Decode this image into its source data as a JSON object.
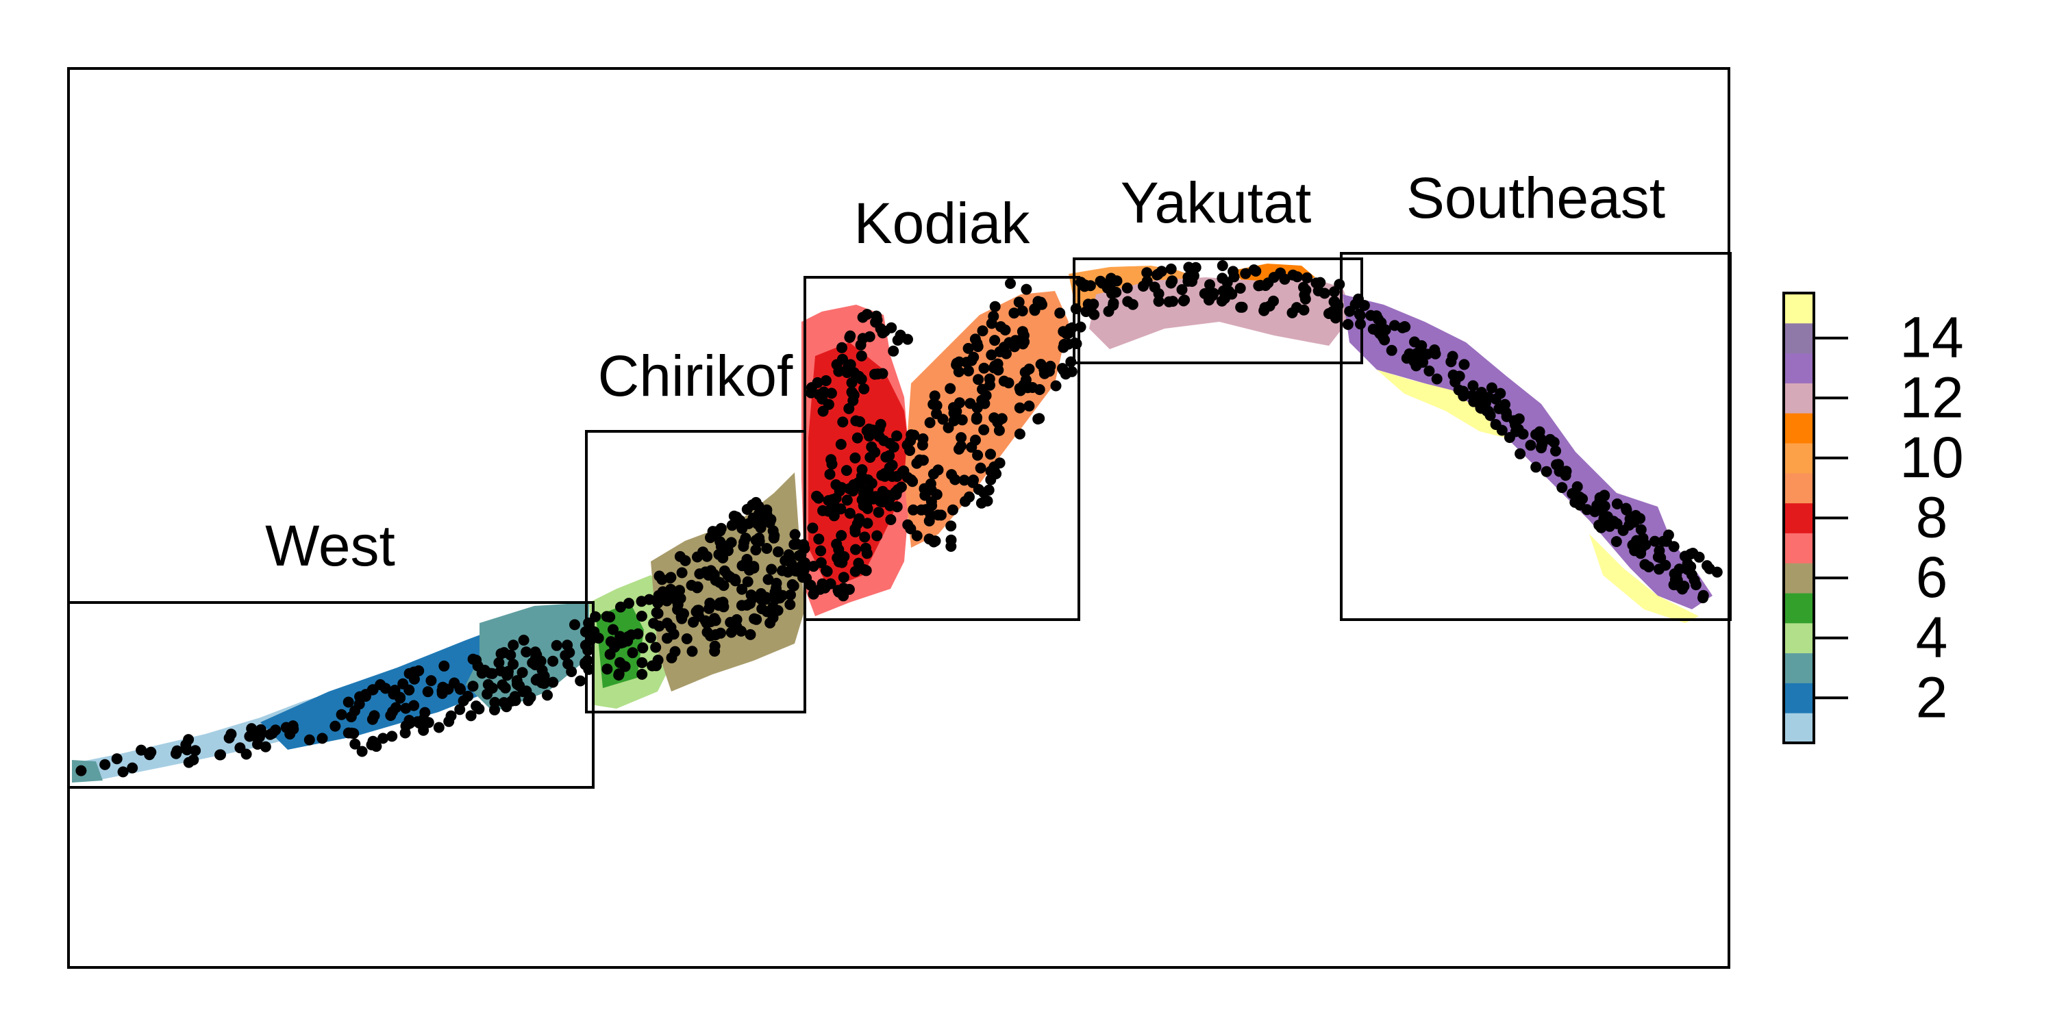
{
  "regions": [
    {
      "name": "West"
    },
    {
      "name": "Chirikof"
    },
    {
      "name": "Kodiak"
    },
    {
      "name": "Yakutat"
    },
    {
      "name": "Southeast"
    }
  ],
  "legend": {
    "placement": "right",
    "class_count": 15,
    "tick_labels": [
      "2",
      "4",
      "6",
      "8",
      "10",
      "12",
      "14"
    ],
    "palette": [
      "#a6cee3",
      "#1f78b4",
      "#5f9ea0",
      "#b2df8a",
      "#33a02c",
      "#a89b6a",
      "#fb6f6f",
      "#e31a1c",
      "#f9935a",
      "#fda149",
      "#ff7f00",
      "#d6a9b8",
      "#9a6fbf",
      "#8f79a8",
      "#ffff99"
    ]
  },
  "points_color": "#000000"
}
